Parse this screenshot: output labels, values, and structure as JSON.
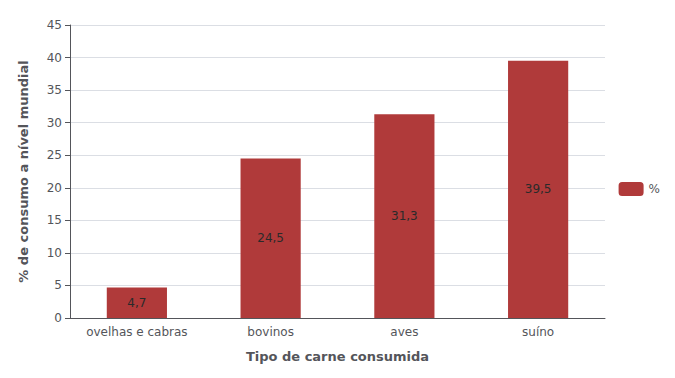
{
  "chart_data": {
    "type": "bar",
    "xlabel": "Tipo de carne consumida",
    "ylabel": "% de consumo a nível mundial",
    "categories": [
      "ovelhas e cabras",
      "bovinos",
      "aves",
      "suíno"
    ],
    "series": [
      {
        "name": "%",
        "color": "#b03a3a",
        "values": [
          4.7,
          24.5,
          31.3,
          39.5
        ],
        "value_labels": [
          "4,7",
          "24,5",
          "31,3",
          "39,5"
        ]
      }
    ],
    "ylim": [
      0,
      45
    ],
    "yticks": [
      0,
      5,
      10,
      15,
      20,
      25,
      30,
      35,
      40,
      45
    ],
    "grid": true,
    "legend": "right",
    "data_labels": true
  }
}
